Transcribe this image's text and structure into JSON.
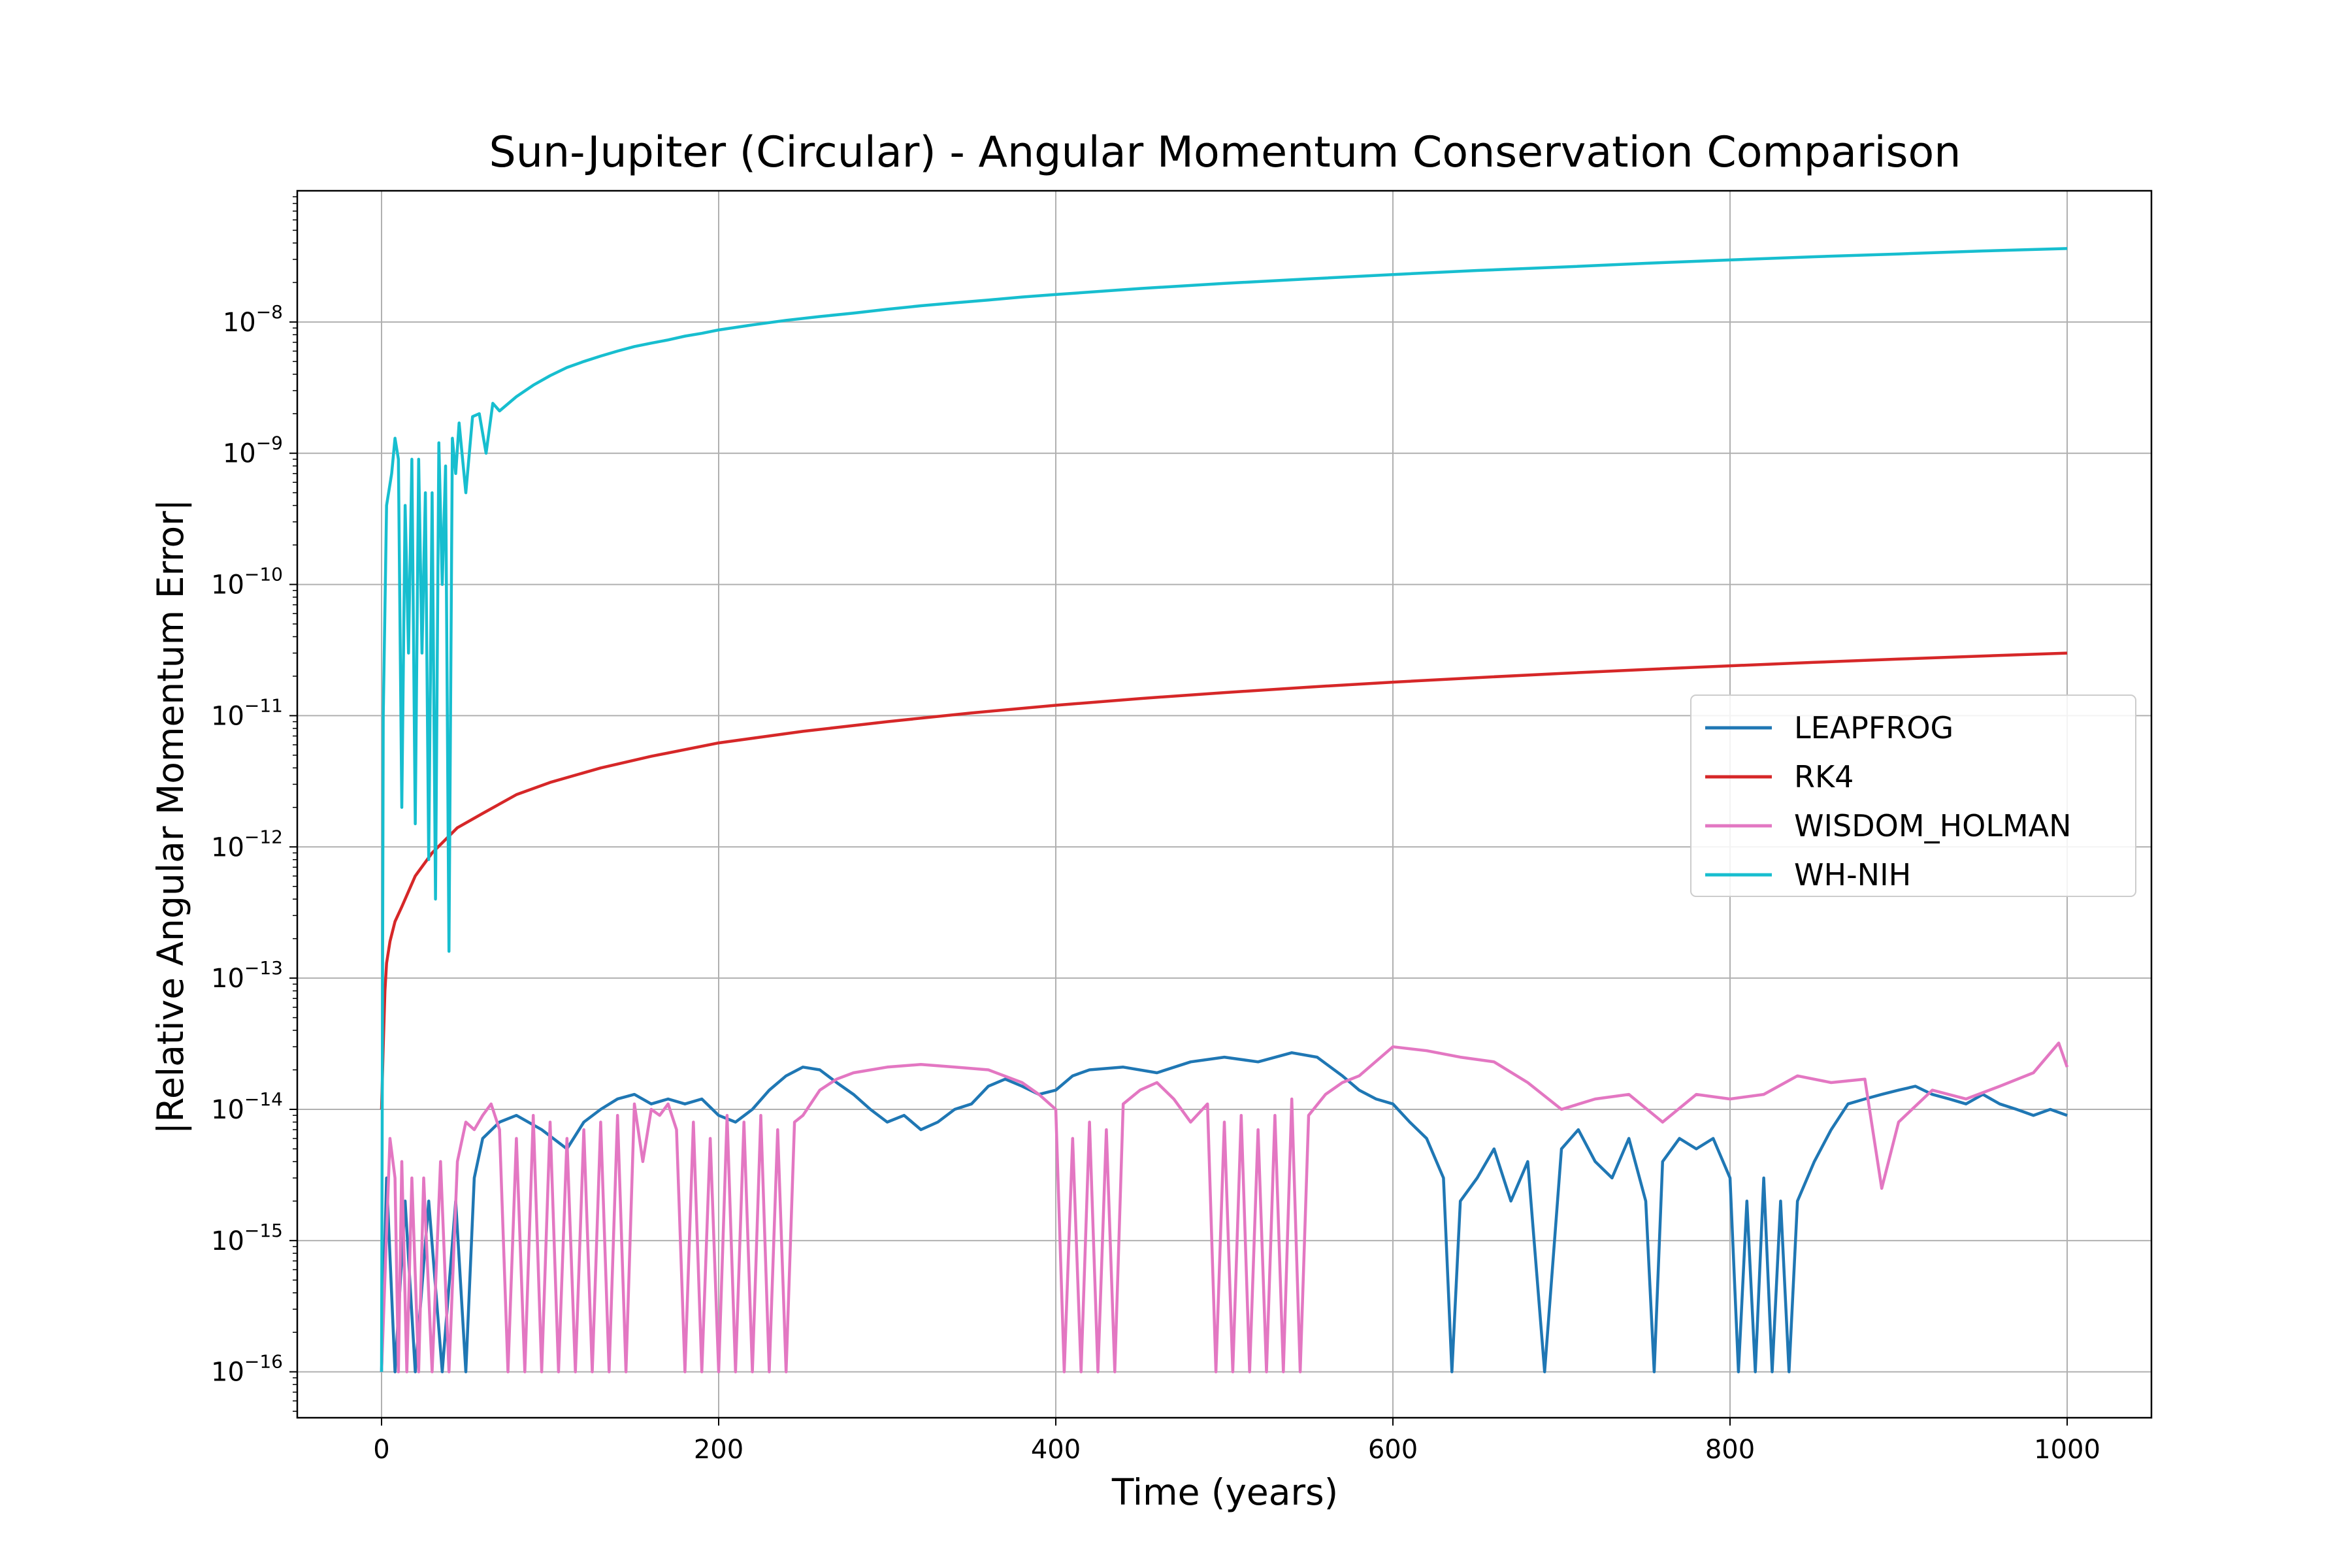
{
  "chart_data": {
    "type": "line",
    "title": "Sun-Jupiter (Circular) - Angular Momentum Conservation Comparison",
    "xlabel": "Time (years)",
    "ylabel": "|Relative Angular Momentum Error|",
    "yscale": "log",
    "xlim": [
      -50,
      1050
    ],
    "ylim_exponent": [
      -16.35,
      -7.0
    ],
    "x_ticks": [
      0,
      200,
      400,
      600,
      800,
      1000
    ],
    "x_tick_labels": [
      "0",
      "200",
      "400",
      "600",
      "800",
      "1000"
    ],
    "y_tick_exponents": [
      -16,
      -15,
      -14,
      -13,
      -12,
      -11,
      -10,
      -9,
      -8
    ],
    "y_tick_labels": [
      "10",
      "10",
      "10",
      "10",
      "10",
      "10",
      "10",
      "10",
      "10"
    ],
    "y_tick_superscripts": [
      "−16",
      "−15",
      "−14",
      "−13",
      "−12",
      "−11",
      "−10",
      "−9",
      "−8"
    ],
    "grid": true,
    "legend_placement": "center-right",
    "series": [
      {
        "name": "LEAPFROG",
        "color": "#1f77b4",
        "x": [
          0,
          3,
          8,
          14,
          20,
          28,
          36,
          44,
          50,
          55,
          60,
          70,
          80,
          95,
          110,
          120,
          130,
          140,
          150,
          160,
          170,
          180,
          190,
          200,
          210,
          220,
          230,
          240,
          250,
          260,
          270,
          280,
          290,
          300,
          310,
          320,
          330,
          340,
          350,
          360,
          370,
          380,
          390,
          400,
          410,
          420,
          440,
          460,
          480,
          500,
          520,
          540,
          555,
          570,
          580,
          590,
          600,
          610,
          620,
          630,
          635,
          640,
          650,
          660,
          670,
          680,
          690,
          700,
          710,
          720,
          730,
          740,
          750,
          755,
          760,
          770,
          780,
          790,
          800,
          805,
          810,
          815,
          820,
          825,
          830,
          835,
          840,
          850,
          860,
          870,
          880,
          890,
          900,
          910,
          920,
          930,
          940,
          950,
          960,
          970,
          980,
          990,
          1000
        ],
        "values": [
          1e-16,
          3e-15,
          1e-16,
          2e-15,
          1e-16,
          2e-15,
          1e-16,
          2e-15,
          1e-16,
          3e-15,
          6e-15,
          8e-15,
          9e-15,
          7e-15,
          5e-15,
          8e-15,
          1e-14,
          1.2e-14,
          1.3e-14,
          1.1e-14,
          1.2e-14,
          1.1e-14,
          1.2e-14,
          9e-15,
          8e-15,
          1e-14,
          1.4e-14,
          1.8e-14,
          2.1e-14,
          2e-14,
          1.6e-14,
          1.3e-14,
          1e-14,
          8e-15,
          9e-15,
          7e-15,
          8e-15,
          1e-14,
          1.1e-14,
          1.5e-14,
          1.7e-14,
          1.5e-14,
          1.3e-14,
          1.4e-14,
          1.8e-14,
          2e-14,
          2.1e-14,
          1.9e-14,
          2.3e-14,
          2.5e-14,
          2.3e-14,
          2.7e-14,
          2.5e-14,
          1.8e-14,
          1.4e-14,
          1.2e-14,
          1.1e-14,
          8e-15,
          6e-15,
          3e-15,
          1e-16,
          2e-15,
          3e-15,
          5e-15,
          2e-15,
          4e-15,
          1e-16,
          5e-15,
          7e-15,
          4e-15,
          3e-15,
          6e-15,
          2e-15,
          1e-16,
          4e-15,
          6e-15,
          5e-15,
          6e-15,
          3e-15,
          1e-16,
          2e-15,
          1e-16,
          3e-15,
          1e-16,
          2e-15,
          1e-16,
          2e-15,
          4e-15,
          7e-15,
          1.1e-14,
          1.2e-14,
          1.3e-14,
          1.4e-14,
          1.5e-14,
          1.3e-14,
          1.2e-14,
          1.1e-14,
          1.3e-14,
          1.1e-14,
          1e-14,
          9e-15,
          1e-14,
          9e-15
        ]
      },
      {
        "name": "RK4",
        "color": "#d62728",
        "x": [
          0,
          1,
          2,
          3,
          5,
          8,
          12,
          20,
          30,
          45,
          60,
          80,
          100,
          130,
          160,
          200,
          250,
          300,
          350,
          400,
          450,
          500,
          550,
          600,
          650,
          700,
          750,
          800,
          850,
          900,
          950,
          1000
        ],
        "values": [
          1e-14,
          3e-14,
          8e-14,
          1.3e-13,
          1.9e-13,
          2.7e-13,
          3.5e-13,
          6e-13,
          9e-13,
          1.4e-12,
          1.8e-12,
          2.5e-12,
          3.1e-12,
          4e-12,
          4.9e-12,
          6.2e-12,
          7.6e-12,
          9e-12,
          1.05e-11,
          1.2e-11,
          1.35e-11,
          1.5e-11,
          1.65e-11,
          1.8e-11,
          1.95e-11,
          2.1e-11,
          2.25e-11,
          2.4e-11,
          2.55e-11,
          2.7e-11,
          2.85e-11,
          3e-11
        ]
      },
      {
        "name": "WISDOM_HOLMAN",
        "color": "#e377c2",
        "x": [
          0,
          5,
          8,
          10,
          12,
          15,
          18,
          22,
          25,
          30,
          35,
          40,
          45,
          50,
          55,
          60,
          65,
          70,
          75,
          80,
          85,
          90,
          95,
          100,
          105,
          110,
          115,
          120,
          125,
          130,
          135,
          140,
          145,
          150,
          155,
          160,
          165,
          170,
          175,
          180,
          185,
          190,
          195,
          200,
          205,
          210,
          215,
          220,
          225,
          230,
          235,
          240,
          245,
          250,
          260,
          270,
          280,
          300,
          320,
          340,
          360,
          380,
          390,
          400,
          405,
          410,
          415,
          420,
          425,
          430,
          435,
          440,
          450,
          460,
          470,
          480,
          490,
          495,
          500,
          505,
          510,
          515,
          520,
          525,
          530,
          535,
          540,
          545,
          550,
          560,
          570,
          580,
          600,
          620,
          640,
          660,
          680,
          700,
          720,
          740,
          760,
          780,
          800,
          820,
          840,
          860,
          880,
          890,
          900,
          920,
          940,
          960,
          980,
          995,
          1000
        ],
        "values": [
          1e-16,
          6e-15,
          3e-15,
          1e-16,
          4e-15,
          1e-16,
          3e-15,
          1e-16,
          3e-15,
          1e-16,
          4e-15,
          1e-16,
          4e-15,
          8e-15,
          7e-15,
          9e-15,
          1.1e-14,
          7e-15,
          1e-16,
          6e-15,
          1e-16,
          9e-15,
          1e-16,
          8e-15,
          1e-16,
          6e-15,
          1e-16,
          7e-15,
          1e-16,
          8e-15,
          1e-16,
          9e-15,
          1e-16,
          1.1e-14,
          4e-15,
          1e-14,
          9e-15,
          1.1e-14,
          7e-15,
          1e-16,
          8e-15,
          1e-16,
          6e-15,
          1e-16,
          9e-15,
          1e-16,
          8e-15,
          1e-16,
          9e-15,
          1e-16,
          7e-15,
          1e-16,
          8e-15,
          9e-15,
          1.4e-14,
          1.7e-14,
          1.9e-14,
          2.1e-14,
          2.2e-14,
          2.1e-14,
          2e-14,
          1.6e-14,
          1.3e-14,
          1e-14,
          1e-16,
          6e-15,
          1e-16,
          8e-15,
          1e-16,
          7e-15,
          1e-16,
          1.1e-14,
          1.4e-14,
          1.6e-14,
          1.2e-14,
          8e-15,
          1.1e-14,
          1e-16,
          8e-15,
          1e-16,
          9e-15,
          1e-16,
          7e-15,
          1e-16,
          9e-15,
          1e-16,
          1.2e-14,
          1e-16,
          9e-15,
          1.3e-14,
          1.6e-14,
          1.8e-14,
          3e-14,
          2.8e-14,
          2.5e-14,
          2.3e-14,
          1.6e-14,
          1e-14,
          1.2e-14,
          1.3e-14,
          8e-15,
          1.3e-14,
          1.2e-14,
          1.3e-14,
          1.8e-14,
          1.6e-14,
          1.7e-14,
          2.5e-15,
          8e-15,
          1.4e-14,
          1.2e-14,
          1.5e-14,
          1.9e-14,
          3.2e-14,
          2.1e-14
        ]
      },
      {
        "name": "WH-NIH",
        "color": "#17becf",
        "x": [
          0,
          1,
          3,
          6,
          8,
          10,
          12,
          14,
          16,
          18,
          20,
          22,
          24,
          26,
          28,
          30,
          32,
          34,
          36,
          38,
          40,
          42,
          44,
          46,
          50,
          54,
          58,
          62,
          66,
          70,
          80,
          90,
          100,
          110,
          120,
          130,
          140,
          150,
          160,
          170,
          180,
          190,
          200,
          220,
          240,
          260,
          280,
          300,
          320,
          340,
          360,
          380,
          400,
          450,
          500,
          550,
          600,
          650,
          700,
          750,
          800,
          850,
          900,
          950,
          1000
        ],
        "values": [
          1e-16,
          1e-11,
          4e-10,
          7e-10,
          1.3e-09,
          9e-10,
          2e-12,
          4e-10,
          3e-11,
          9e-10,
          1.5e-12,
          9e-10,
          3e-11,
          5e-10,
          8e-13,
          5e-10,
          4e-13,
          1.2e-09,
          1e-10,
          8e-10,
          1.6e-13,
          1.3e-09,
          7e-10,
          1.7e-09,
          5e-10,
          1.9e-09,
          2e-09,
          1e-09,
          2.4e-09,
          2.1e-09,
          2.7e-09,
          3.3e-09,
          3.9e-09,
          4.5e-09,
          5e-09,
          5.5e-09,
          6e-09,
          6.5e-09,
          6.9e-09,
          7.3e-09,
          7.8e-09,
          8.2e-09,
          8.7e-09,
          9.5e-09,
          1.03e-08,
          1.1e-08,
          1.17e-08,
          1.25e-08,
          1.33e-08,
          1.4e-08,
          1.47e-08,
          1.55e-08,
          1.62e-08,
          1.8e-08,
          1.97e-08,
          2.13e-08,
          2.3e-08,
          2.47e-08,
          2.62e-08,
          2.8e-08,
          2.97e-08,
          3.14e-08,
          3.3e-08,
          3.48e-08,
          3.63e-08
        ]
      }
    ]
  }
}
